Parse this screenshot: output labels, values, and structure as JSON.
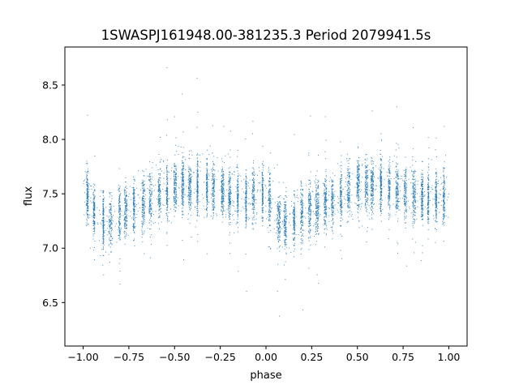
{
  "chart_data": {
    "type": "scatter",
    "title": "1SWASPJ161948.00-381235.3 Period 2079941.5s",
    "xlabel": "phase",
    "ylabel": "flux",
    "xlim": [
      -1.1,
      1.1
    ],
    "ylim": [
      6.1,
      8.85
    ],
    "xticks": [
      -1.0,
      -0.75,
      -0.5,
      -0.25,
      0.0,
      0.25,
      0.5,
      0.75,
      1.0
    ],
    "xtick_labels": [
      "−1.00",
      "−0.75",
      "−0.50",
      "−0.25",
      "0.00",
      "0.25",
      "0.50",
      "0.75",
      "1.00"
    ],
    "yticks": [
      6.5,
      7.0,
      7.5,
      8.0,
      8.5
    ],
    "ytick_labels": [
      "6.5",
      "7.0",
      "7.5",
      "8.0",
      "8.5"
    ],
    "grid": false,
    "legend": "none",
    "point_color": "#1f77b4",
    "series": [
      {
        "x": [
          -0.98,
          -0.96,
          -0.93,
          -0.9,
          -0.87,
          -0.84,
          -0.81,
          -0.78,
          -0.75,
          -0.72,
          -0.69,
          -0.66,
          -0.63,
          -0.6,
          -0.57,
          -0.54,
          -0.51,
          -0.48,
          -0.45,
          -0.42,
          -0.39,
          -0.36,
          -0.33,
          -0.3,
          -0.27,
          -0.24,
          -0.21,
          -0.18,
          -0.15,
          -0.12,
          -0.09,
          -0.06,
          -0.03,
          0.0,
          0.03,
          0.06,
          0.09,
          0.12,
          0.15,
          0.18,
          0.21,
          0.24,
          0.27,
          0.3,
          0.33,
          0.36,
          0.39,
          0.42,
          0.45,
          0.48,
          0.51,
          0.54,
          0.57,
          0.6,
          0.63,
          0.66,
          0.69,
          0.72,
          0.75,
          0.78,
          0.81,
          0.84,
          0.87,
          0.9,
          0.93,
          0.96,
          0.99
        ],
        "y": [
          7.5,
          7.42,
          7.3,
          7.24,
          7.22,
          7.25,
          7.3,
          7.34,
          7.36,
          7.38,
          7.4,
          7.42,
          7.45,
          7.48,
          7.5,
          7.53,
          7.55,
          7.57,
          7.58,
          7.58,
          7.58,
          7.57,
          7.56,
          7.55,
          7.53,
          7.52,
          7.5,
          7.49,
          7.48,
          7.47,
          7.47,
          7.48,
          7.49,
          7.5,
          7.42,
          7.3,
          7.24,
          7.22,
          7.25,
          7.3,
          7.34,
          7.36,
          7.38,
          7.4,
          7.42,
          7.45,
          7.48,
          7.5,
          7.53,
          7.55,
          7.57,
          7.58,
          7.58,
          7.58,
          7.57,
          7.56,
          7.55,
          7.53,
          7.52,
          7.5,
          7.49,
          7.48,
          7.47,
          7.47,
          7.48,
          7.49,
          7.5
        ]
      }
    ]
  }
}
